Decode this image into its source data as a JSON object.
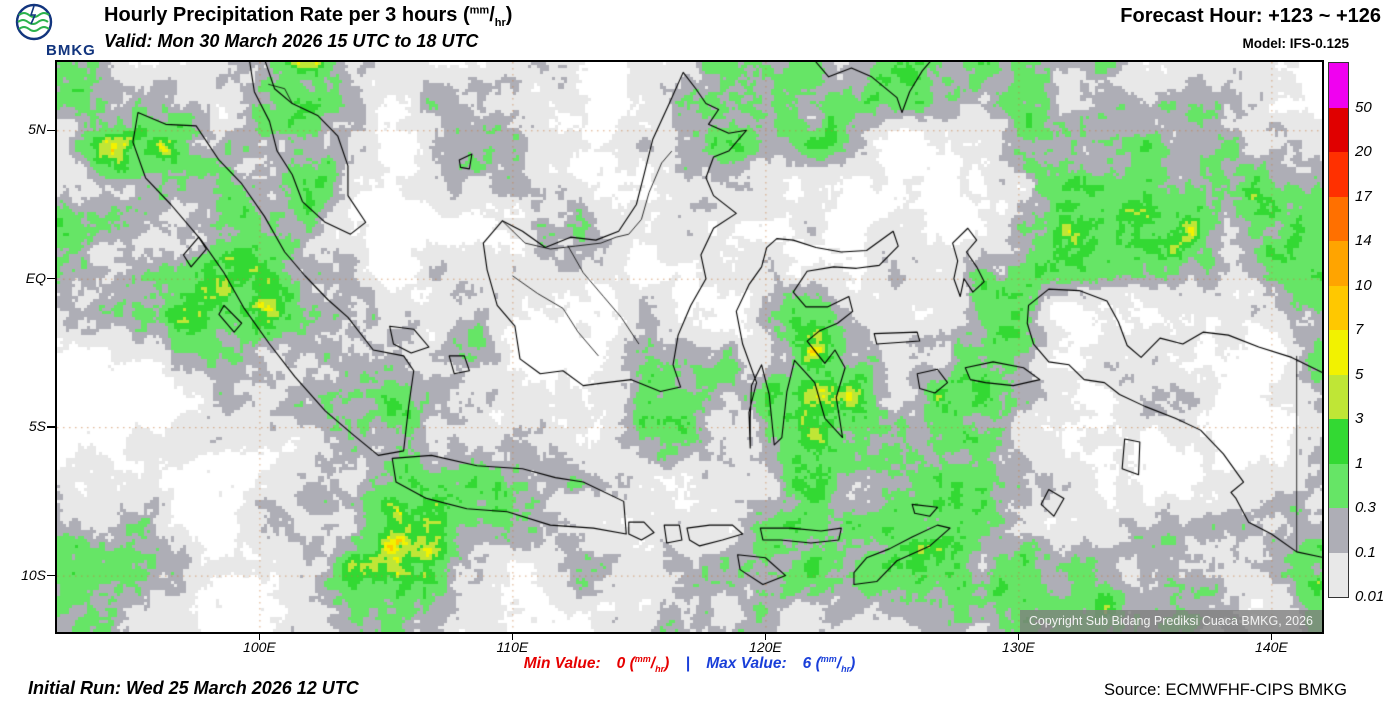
{
  "header": {
    "logo_text": "BMKG",
    "title": "Hourly Precipitation Rate per 3 hours",
    "unit_open": "(",
    "unit_num": "mm",
    "unit_slash": "/",
    "unit_den": "hr",
    "unit_close": ")",
    "valid": "Valid: Mon 30 March 2026 15 UTC to 18 UTC",
    "forecast_hour": "Forecast Hour: +123 ~ +126",
    "model": "Model: IFS-0.125"
  },
  "map": {
    "lat_ticks": [
      {
        "label": "5N",
        "value": 5
      },
      {
        "label": "EQ",
        "value": 0
      },
      {
        "label": "5S",
        "value": -5
      },
      {
        "label": "10S",
        "value": -10
      }
    ],
    "lon_ticks": [
      {
        "label": "100E",
        "value": 100
      },
      {
        "label": "110E",
        "value": 110
      },
      {
        "label": "120E",
        "value": 120
      },
      {
        "label": "130E",
        "value": 130
      },
      {
        "label": "140E",
        "value": 140
      }
    ],
    "copyright": "Copyright Sub Bidang Prediksi Cuaca BMKG, 2026"
  },
  "legend": {
    "title": "precipitation-rate-scale-mm-per-hr",
    "labels": [
      "50",
      "20",
      "17",
      "14",
      "10",
      "7",
      "5",
      "3",
      "1",
      "0.3",
      "0.1",
      "0.01"
    ],
    "colors": [
      "#f001f0",
      "#e00000",
      "#ff3000",
      "#ff7000",
      "#ffa400",
      "#ffc800",
      "#f2f200",
      "#bfe636",
      "#33d933",
      "#66e566",
      "#aeaeb6",
      "#e8e8e8"
    ]
  },
  "footer": {
    "initial_run": "Initial Run: Wed 25 March 2026 12 UTC",
    "min_label": "Min Value:",
    "min_value": "0",
    "separator": "|",
    "max_label": "Max Value:",
    "max_value": "6",
    "unit_open": "(",
    "unit_num": "mm",
    "unit_slash": "/",
    "unit_den": "hr",
    "unit_close": ")",
    "source": "Source: ECMWFHF-CIPS BMKG"
  },
  "colors": {
    "min_color": "#e60000",
    "max_color": "#1a3fd9",
    "sep_color": "#1a3fd9",
    "grid_line": "#c87a3c",
    "coastline": "#000000",
    "logo_blue": "#12357e",
    "logo_green": "#2bb24c"
  }
}
